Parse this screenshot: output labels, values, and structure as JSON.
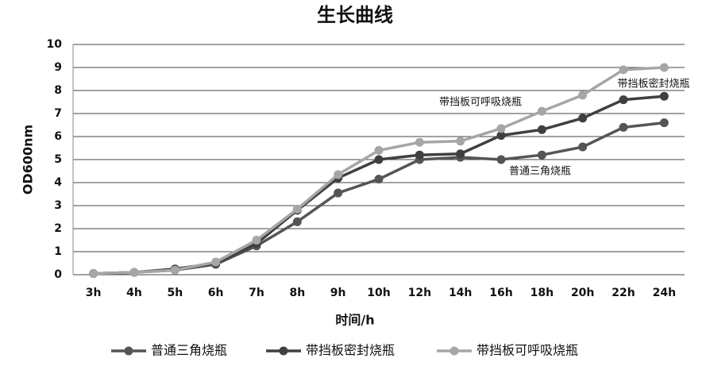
{
  "chart_data": {
    "type": "line",
    "title": "生长曲线",
    "x_label": "时间/h",
    "y_label": "OD600nm",
    "categories": [
      "3h",
      "4h",
      "5h",
      "6h",
      "7h",
      "8h",
      "9h",
      "10h",
      "12h",
      "14h",
      "16h",
      "18h",
      "20h",
      "22h",
      "24h"
    ],
    "series": [
      {
        "name": "普通三角烧瓶",
        "color": "#555555",
        "values": [
          0.05,
          0.1,
          0.2,
          0.45,
          1.25,
          2.3,
          3.55,
          4.15,
          5.0,
          5.1,
          5.0,
          5.2,
          5.55,
          6.4,
          6.6
        ]
      },
      {
        "name": "带挡板密封烧瓶",
        "color": "#404040",
        "values": [
          0.05,
          0.1,
          0.25,
          0.5,
          1.35,
          2.8,
          4.2,
          5.0,
          5.2,
          5.25,
          6.05,
          6.3,
          6.8,
          7.6,
          7.75
        ]
      },
      {
        "name": "带挡板可呼吸烧瓶",
        "color": "#a6a6a6",
        "values": [
          0.05,
          0.1,
          0.2,
          0.55,
          1.5,
          2.85,
          4.35,
          5.4,
          5.75,
          5.8,
          6.35,
          7.1,
          7.8,
          8.9,
          9.0
        ]
      }
    ],
    "annotations": [
      "带挡板密封烧瓶",
      "带挡板可呼吸烧瓶",
      "普通三角烧瓶"
    ],
    "ylim": [
      0,
      10
    ],
    "yticks": [
      0,
      1,
      2,
      3,
      4,
      5,
      6,
      7,
      8,
      9,
      10
    ],
    "grid": true,
    "legend": "bottom"
  }
}
